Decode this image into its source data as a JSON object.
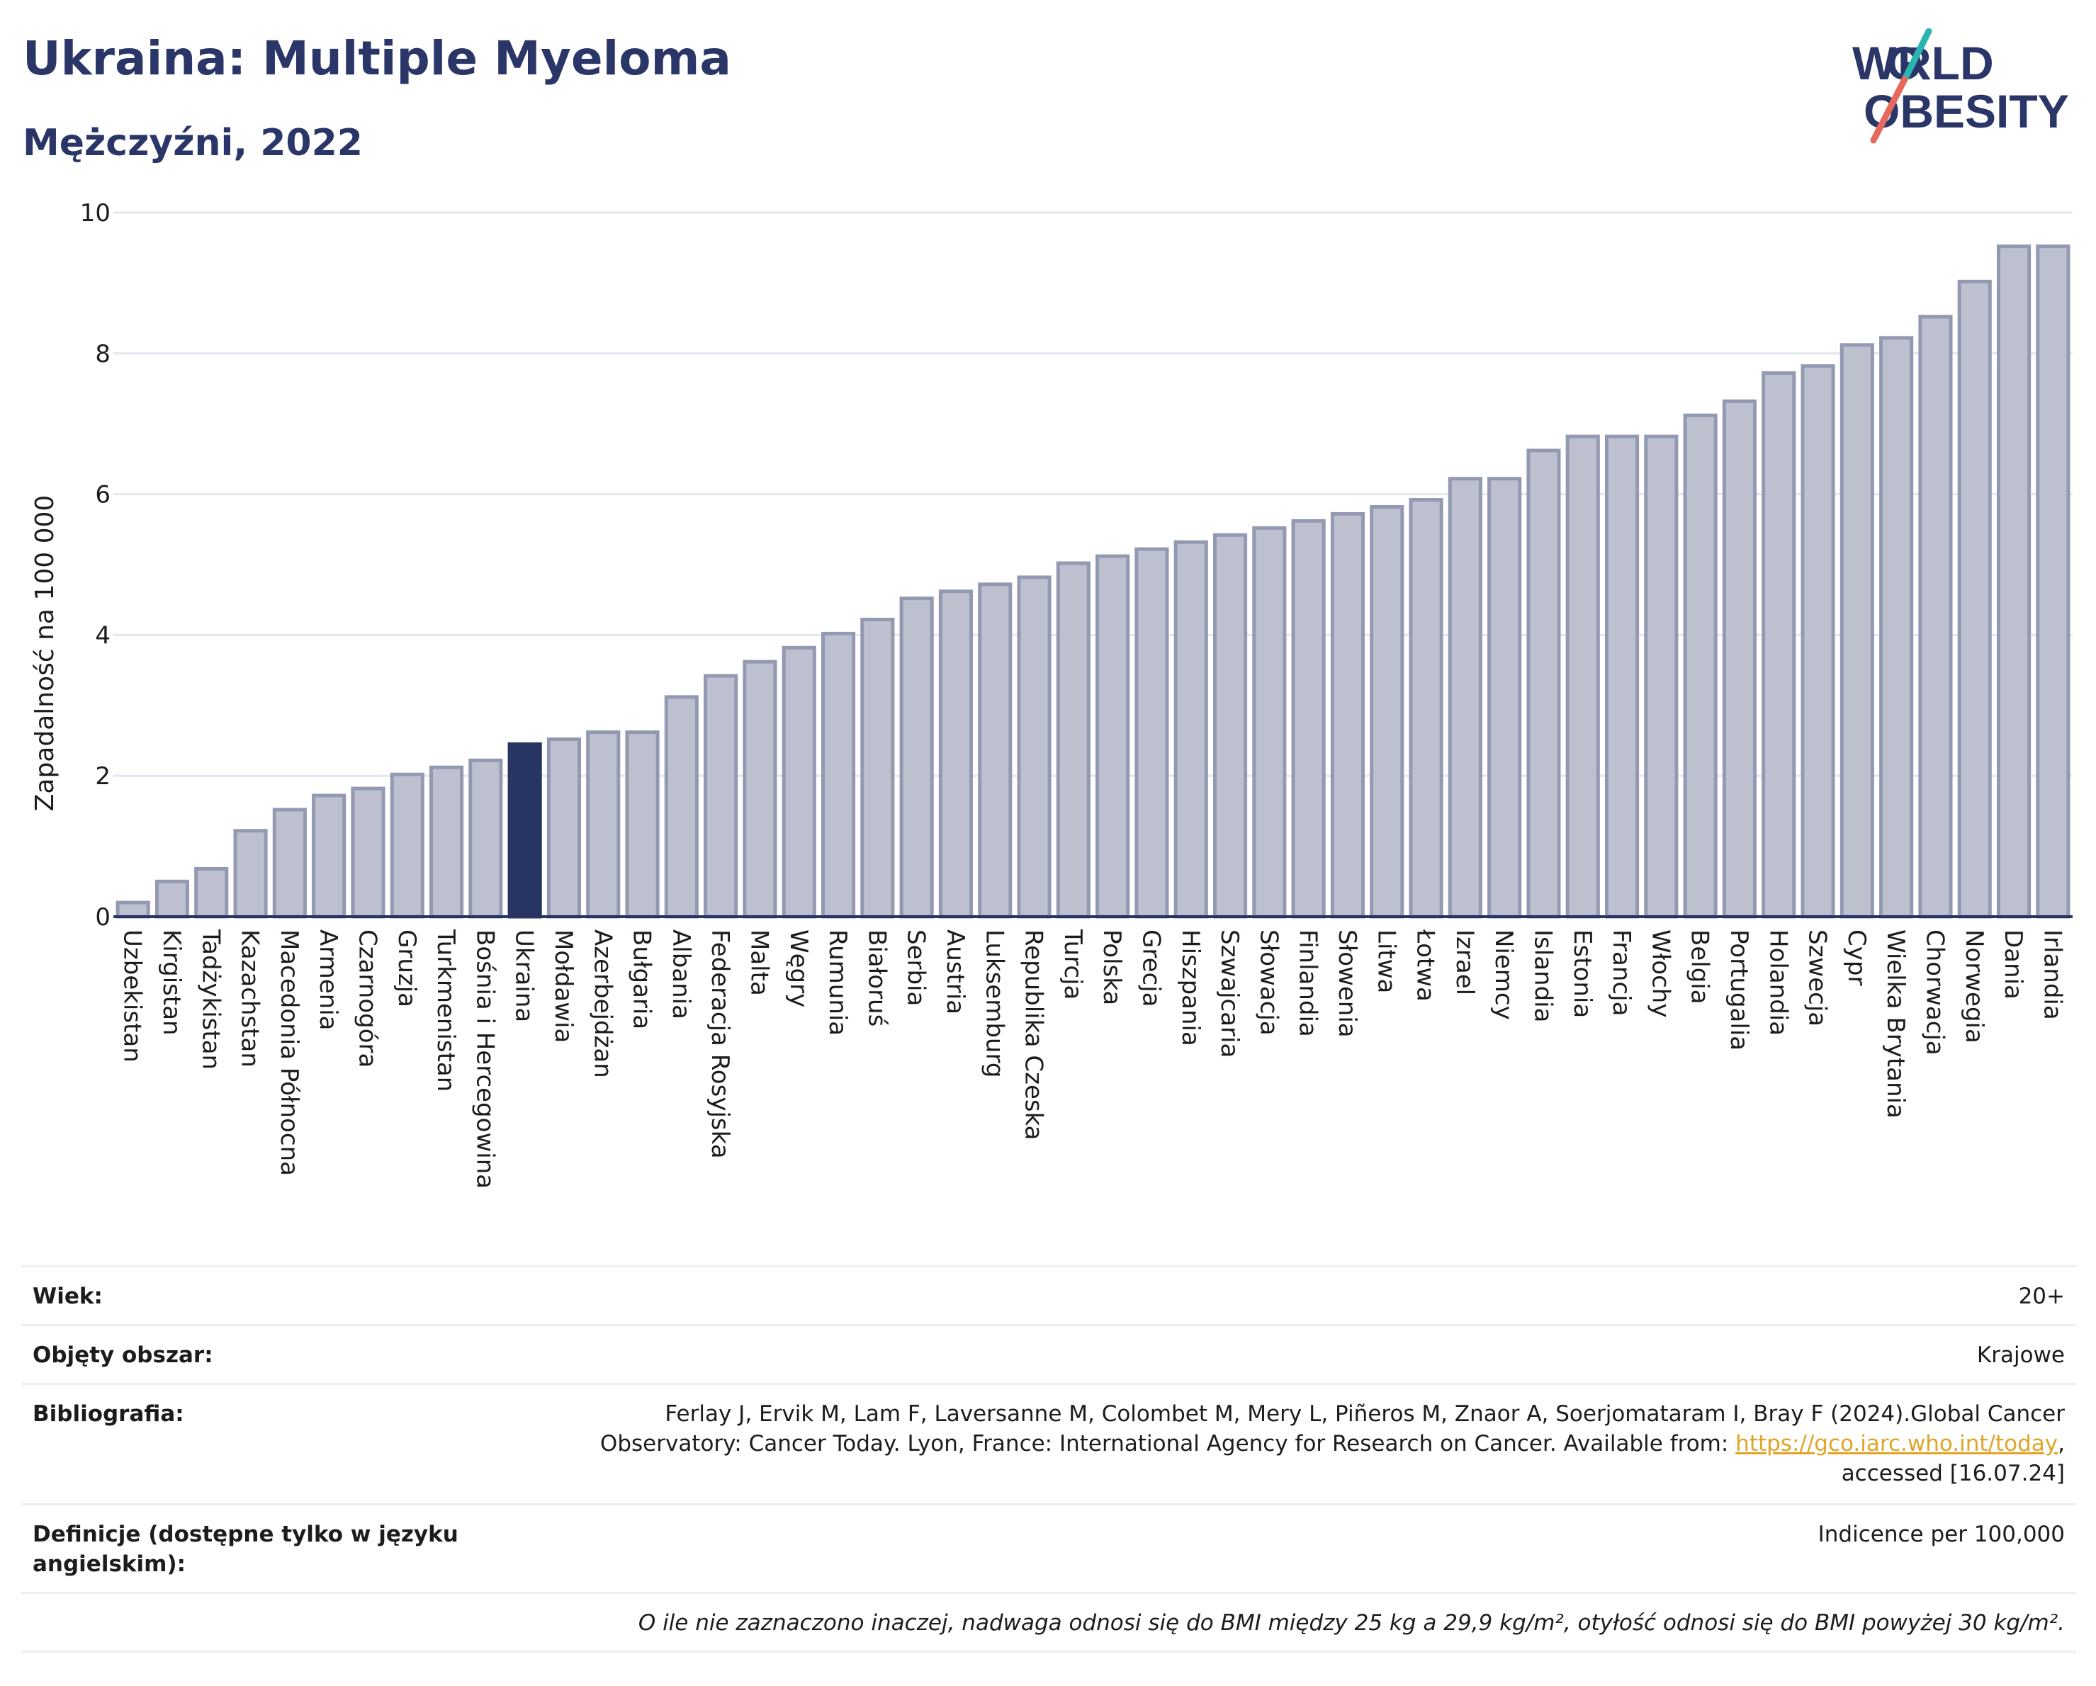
{
  "header": {
    "title": "Ukraina: Multiple Myeloma",
    "subtitle": "Mężczyźni, 2022"
  },
  "logo": {
    "line1": "WORLD",
    "line2": "OBESITY"
  },
  "colors": {
    "highlight": "#283462",
    "bar": "#bdc1cf",
    "bar_stroke": "#9499b2",
    "axis": "#283462",
    "grid": "#e4e6ee"
  },
  "chart_data": {
    "type": "bar",
    "ylabel": "Zapadalność na 100 000",
    "ylim": [
      0,
      10
    ],
    "yticks": [
      0,
      2,
      4,
      6,
      8,
      10
    ],
    "highlight": "Ukraina",
    "categories": [
      "Uzbekistan",
      "Kirgistan",
      "Tadżykistan",
      "Kazachstan",
      "Macedonia Północna",
      "Armenia",
      "Czarnogóra",
      "Gruzja",
      "Turkmenistan",
      "Bośnia i Hercegowina",
      "Ukraina",
      "Mołdawia",
      "Azerbejdżan",
      "Bułgaria",
      "Albania",
      "Federacja Rosyjska",
      "Malta",
      "Węgry",
      "Rumunia",
      "Białoruś",
      "Serbia",
      "Austria",
      "Luksemburg",
      "Republika Czeska",
      "Turcja",
      "Polska",
      "Grecja",
      "Hiszpania",
      "Szwajcaria",
      "Słowacja",
      "Finlandia",
      "Słowenia",
      "Litwa",
      "Łotwa",
      "Izrael",
      "Niemcy",
      "Islandia",
      "Estonia",
      "Francja",
      "Włochy",
      "Belgia",
      "Portugalia",
      "Holandia",
      "Szwecja",
      "Cypr",
      "Wielka Brytania",
      "Chorwacja",
      "Norwegia",
      "Dania",
      "Irlandia"
    ],
    "values": [
      0.2,
      0.5,
      0.68,
      1.22,
      1.52,
      1.72,
      1.82,
      2.02,
      2.12,
      2.22,
      2.45,
      2.52,
      2.62,
      2.62,
      3.12,
      3.42,
      3.62,
      3.82,
      4.02,
      4.22,
      4.52,
      4.62,
      4.72,
      4.82,
      5.02,
      5.12,
      5.22,
      5.32,
      5.42,
      5.52,
      5.62,
      5.72,
      5.82,
      5.92,
      6.22,
      6.22,
      6.62,
      6.82,
      6.82,
      6.82,
      7.12,
      7.32,
      7.72,
      7.82,
      8.12,
      8.22,
      8.52,
      9.02,
      9.52,
      9.52
    ]
  },
  "info": {
    "age_label": "Wiek:",
    "age_value": "20+",
    "area_label": "Objęty obszar:",
    "area_value": "Krajowe",
    "bib_label": "Bibliografia:",
    "bib_text": "Ferlay J, Ervik M, Lam F, Laversanne M, Colombet M, Mery L, Piñeros M, Znaor A, Soerjomataram I, Bray F (2024).Global Cancer Observatory: Cancer Today. Lyon, France: International Agency for Research on Cancer. Available from:",
    "bib_link": "https://gco.iarc.who.int/today",
    "bib_tail": ", accessed [16.07.24]",
    "def_label": "Definicje (dostępne tylko w języku angielskim):",
    "def_value": "Indicence per 100,000",
    "note": "O ile nie zaznaczono inaczej, nadwaga odnosi się do BMI między 25 kg a 29,9 kg/m², otyłość odnosi się do BMI powyżej 30 kg/m²."
  }
}
